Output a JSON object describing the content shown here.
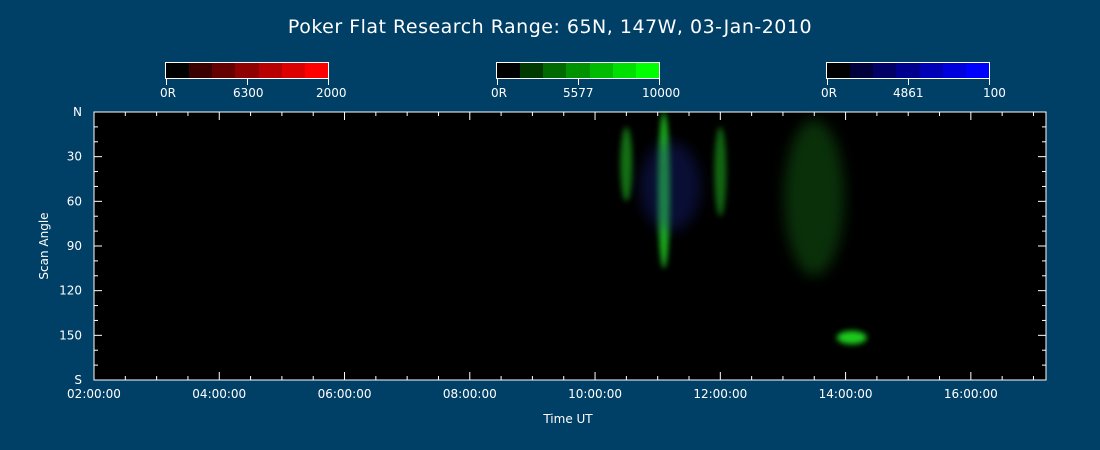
{
  "title": "Poker Flat Research Range: 65N, 147W, 03-Jan-2010",
  "colorbars": [
    {
      "min_label": "0R",
      "name_label": "6300",
      "max_label": "2000",
      "colors": [
        "#000000",
        "#3a0000",
        "#650000",
        "#8f0000",
        "#b70000",
        "#dd0000",
        "#ff0000"
      ]
    },
    {
      "min_label": "0R",
      "name_label": "5577",
      "max_label": "10000",
      "colors": [
        "#000000",
        "#003a00",
        "#006a00",
        "#009200",
        "#00bb00",
        "#00e000",
        "#00ff00"
      ]
    },
    {
      "min_label": "0R",
      "name_label": "4861",
      "max_label": "100",
      "colors": [
        "#000000",
        "#00003a",
        "#000065",
        "#00008f",
        "#0000b7",
        "#0000dd",
        "#0000ff"
      ]
    }
  ],
  "chart_data": {
    "type": "heatmap",
    "title": "Poker Flat Research Range: 65N, 147W, 03-Jan-2010",
    "xlabel": "Time UT",
    "ylabel": "Scan Angle",
    "x_tick_labels": [
      "02:00:00",
      "04:00:00",
      "06:00:00",
      "08:00:00",
      "10:00:00",
      "12:00:00",
      "14:00:00",
      "16:00:00"
    ],
    "x_tick_hours": [
      2,
      4,
      6,
      8,
      10,
      12,
      14,
      16
    ],
    "xlim_hours": [
      2.0,
      17.2
    ],
    "y_tick_labels": [
      "N",
      "30",
      "60",
      "90",
      "120",
      "150",
      "S"
    ],
    "y_tick_values": [
      0,
      30,
      60,
      90,
      120,
      150,
      180
    ],
    "ylim": [
      0,
      180
    ],
    "grid": false,
    "features": [
      {
        "channel": "5577",
        "color": "#22cc22",
        "t_hours": 11.1,
        "angle_top": 0,
        "angle_bottom": 105,
        "intensity": "high"
      },
      {
        "channel": "5577",
        "color": "#22bb22",
        "t_hours": 10.5,
        "angle_top": 10,
        "angle_bottom": 60,
        "intensity": "medium"
      },
      {
        "channel": "5577",
        "color": "#1fa81f",
        "t_hours": 12.0,
        "angle_top": 10,
        "angle_bottom": 70,
        "intensity": "medium"
      },
      {
        "channel": "5577",
        "color": "#1a8a1a",
        "t_hours": 13.5,
        "angle_top": 5,
        "angle_bottom": 110,
        "intensity": "low"
      },
      {
        "channel": "5577",
        "color": "#22ee22",
        "t_hours": 14.1,
        "angle_top": 147,
        "angle_bottom": 156,
        "intensity": "high"
      },
      {
        "channel": "4861",
        "color": "#1a2a99",
        "t_hours": 11.2,
        "angle_top": 20,
        "angle_bottom": 80,
        "intensity": "low"
      }
    ]
  }
}
